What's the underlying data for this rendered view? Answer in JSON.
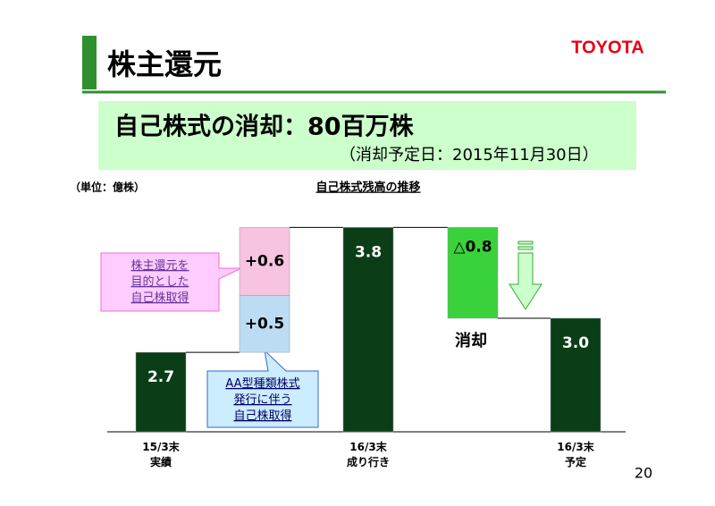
{
  "header": {
    "title": "株主還元",
    "logo": "TOYOTA"
  },
  "banner": {
    "title": "自己株式の消却：80百万株",
    "subtitle": "（消却予定日：2015年11月30日）"
  },
  "page_number": "20",
  "chart_data": {
    "type": "waterfall",
    "title": "自己株式残高の推移",
    "unit_label": "（単位：億株）",
    "ylim": [
      2,
      4
    ],
    "columns": [
      {
        "category": "15/3末\n実績",
        "segments": [
          {
            "value": 2.7,
            "value_label": "2.7",
            "color": "#0b3d16",
            "total": true
          }
        ]
      },
      {
        "category": null,
        "segments": [
          {
            "value": 0.5,
            "value_label": "+0.5",
            "color": "#bcdcf4",
            "total": false
          },
          {
            "value": 0.6,
            "value_label": "+0.6",
            "color": "#f7c3df",
            "total": false
          }
        ]
      },
      {
        "category": "16/3末\n成り行き",
        "segments": [
          {
            "value": 3.8,
            "value_label": "3.8",
            "color": "#0b3d16",
            "total": true
          }
        ]
      },
      {
        "category": null,
        "segments": [
          {
            "value": -0.8,
            "value_label": "△0.8",
            "color": "#3ad23a",
            "total": false
          }
        ]
      },
      {
        "category": "16/3末\n予定",
        "segments": [
          {
            "value": 3.0,
            "value_label": "3.0",
            "color": "#0b3d16",
            "total": true
          }
        ]
      }
    ],
    "annotations": [
      "株主還元を\n目的とした\n自己株取得",
      "AA型種類株式\n発行に伴う\n自己株取得",
      "消却"
    ]
  }
}
